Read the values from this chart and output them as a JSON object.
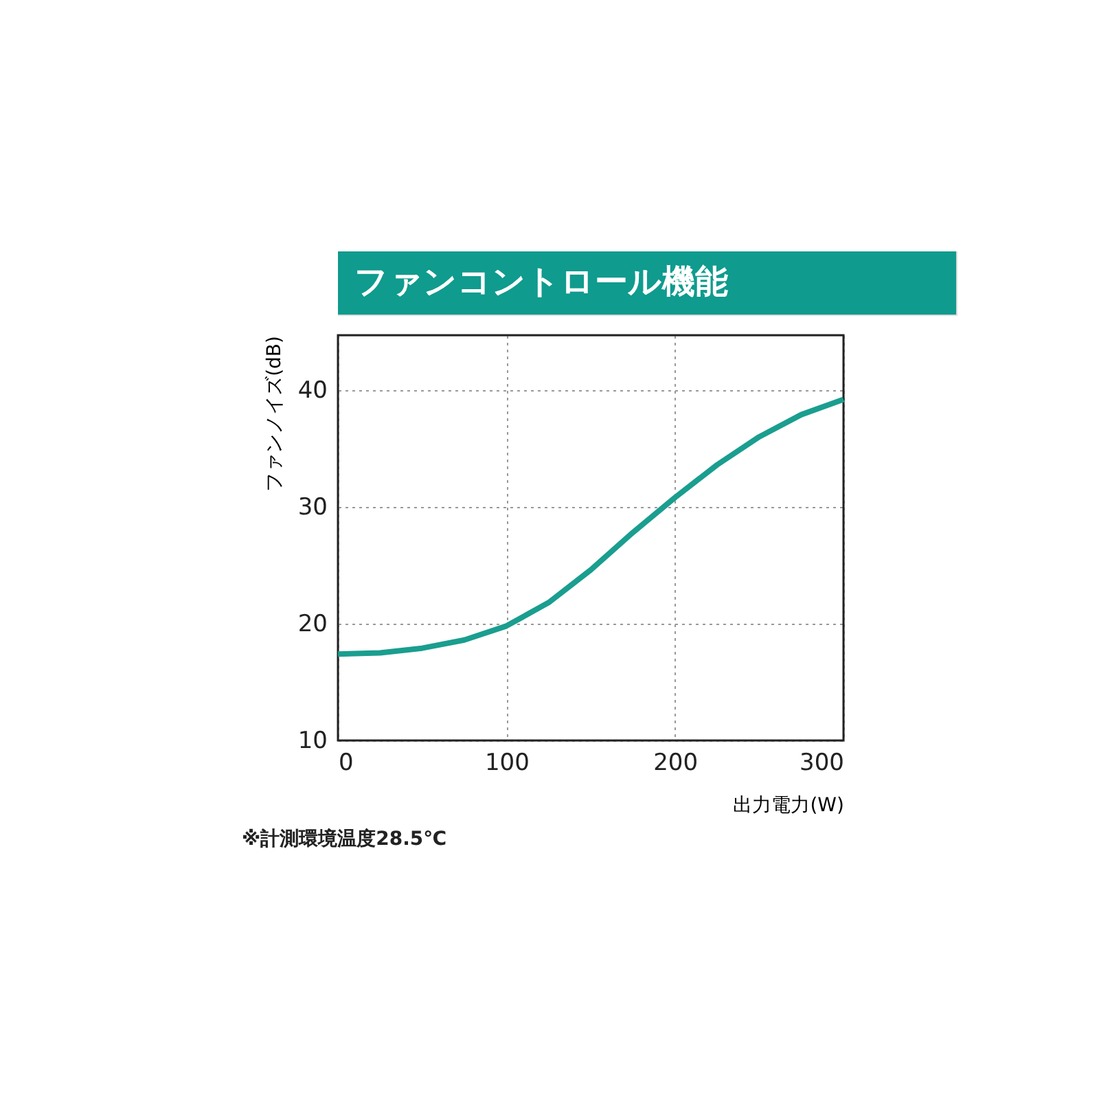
{
  "chart_data": {
    "type": "line",
    "title": "ファンコントロール機能",
    "xlabel": "出力電力(W)",
    "ylabel": "ファンノイズ(dB)",
    "x": [
      0,
      25,
      50,
      75,
      100,
      125,
      150,
      175,
      200,
      225,
      250,
      275,
      300
    ],
    "series": [
      {
        "color": "#1a9e8f",
        "values": [
          17.4,
          17.5,
          17.9,
          18.6,
          19.8,
          21.8,
          24.6,
          27.8,
          30.8,
          33.6,
          36.0,
          37.9,
          39.2
        ]
      }
    ],
    "xlim": [
      0,
      300
    ],
    "ylim": [
      10,
      44.7
    ],
    "xticks": [
      0,
      100,
      200,
      300
    ],
    "yticks": [
      10,
      20,
      30,
      40
    ],
    "grid": true,
    "marker": "none",
    "line_style": "solid",
    "annotations": [
      "※計測環境温度28.5℃"
    ]
  }
}
